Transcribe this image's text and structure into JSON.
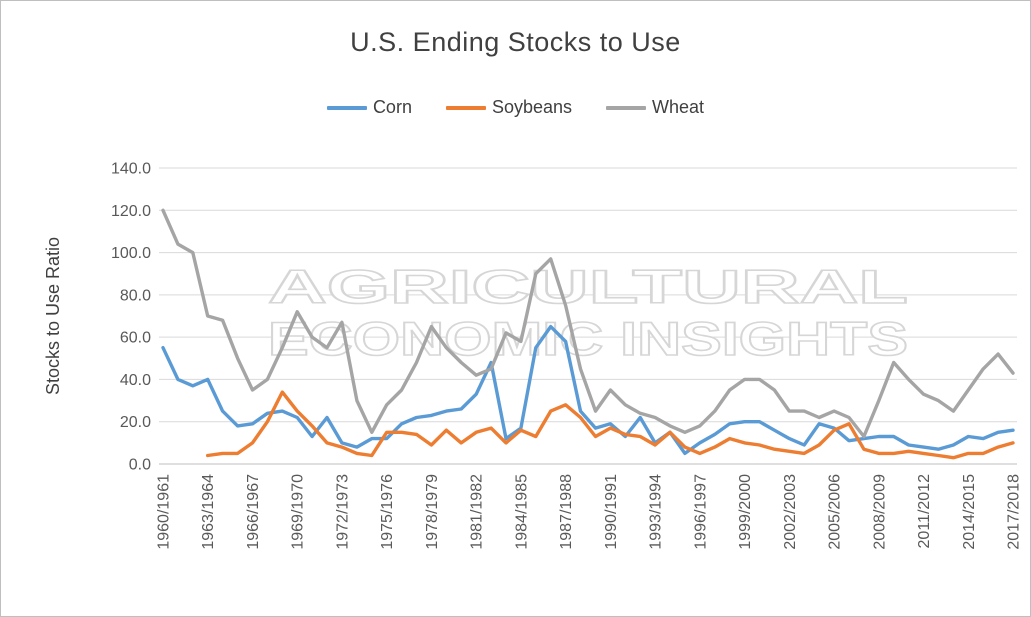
{
  "chart_data": {
    "type": "line",
    "title": "U.S. Ending Stocks to Use",
    "xlabel": "",
    "ylabel": "Stocks to Use Ratio",
    "ylim": [
      0,
      140
    ],
    "ytick_labels": [
      "0.0",
      "20.0",
      "40.0",
      "60.0",
      "80.0",
      "100.0",
      "120.0",
      "140.0"
    ],
    "x_tick_labels": [
      "1960/1961",
      "1963/1964",
      "1966/1967",
      "1969/1970",
      "1972/1973",
      "1975/1976",
      "1978/1979",
      "1981/1982",
      "1984/1985",
      "1987/1988",
      "1990/1991",
      "1993/1994",
      "1996/1997",
      "1999/2000",
      "2002/2003",
      "2005/2006",
      "2008/2009",
      "2011/2012",
      "2014/2015",
      "2017/2018"
    ],
    "x_label_every": 3,
    "grid": "horizontal",
    "legend_position": "top",
    "watermark": {
      "line1": "AGRICULTURAL",
      "line2": "ECONOMIC INSIGHTS"
    },
    "series": [
      {
        "name": "Corn",
        "color": "#5B9BD5",
        "values": [
          55,
          40,
          37,
          40,
          25,
          18,
          19,
          24,
          25,
          22,
          13,
          22,
          10,
          8,
          12,
          12,
          19,
          22,
          23,
          25,
          26,
          33,
          48,
          12,
          17,
          55,
          65,
          58,
          25,
          17,
          19,
          13,
          22,
          10,
          15,
          5,
          10,
          14,
          19,
          20,
          20,
          16,
          12,
          9,
          19,
          17,
          11,
          12,
          13,
          13,
          9,
          8,
          7,
          9,
          13,
          12,
          15,
          16
        ]
      },
      {
        "name": "Soybeans",
        "color": "#ED7D31",
        "values": [
          null,
          null,
          null,
          4,
          5,
          5,
          10,
          20,
          34,
          25,
          18,
          10,
          8,
          5,
          4,
          15,
          15,
          14,
          9,
          16,
          10,
          15,
          17,
          10,
          16,
          13,
          25,
          28,
          22,
          13,
          17,
          14,
          13,
          9,
          15,
          8,
          5,
          8,
          12,
          10,
          9,
          7,
          6,
          5,
          9,
          16,
          19,
          7,
          5,
          5,
          6,
          5,
          4,
          3,
          5,
          5,
          8,
          10
        ]
      },
      {
        "name": "Wheat",
        "color": "#A5A5A5",
        "values": [
          120,
          104,
          100,
          70,
          68,
          50,
          35,
          40,
          55,
          72,
          60,
          55,
          67,
          30,
          15,
          28,
          35,
          48,
          65,
          55,
          48,
          42,
          45,
          62,
          58,
          90,
          97,
          75,
          45,
          25,
          35,
          28,
          24,
          22,
          18,
          15,
          18,
          25,
          35,
          40,
          40,
          35,
          25,
          25,
          22,
          25,
          22,
          13,
          30,
          48,
          40,
          33,
          30,
          25,
          35,
          45,
          52,
          43
        ]
      }
    ]
  }
}
